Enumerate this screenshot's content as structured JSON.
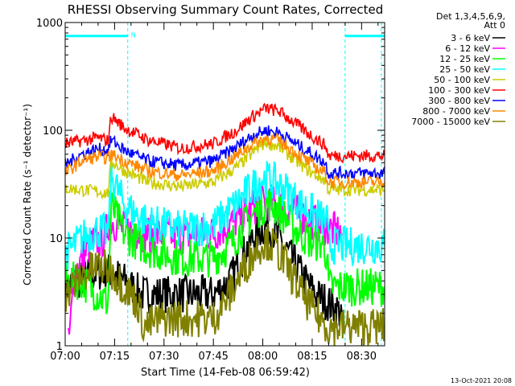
{
  "chart_data": {
    "type": "line",
    "title": "RHESSI Observing Summary Count Rates, Corrected",
    "xlabel": "Start Time (14-Feb-08 06:59:42)",
    "ylabel": "Corrected Count Rate (s⁻¹ detector⁻¹)",
    "yscale": "log",
    "ylim": [
      1,
      1000
    ],
    "xlim_minutes": [
      0,
      97
    ],
    "x_ticks": [
      {
        "t": 0,
        "label": "07:00"
      },
      {
        "t": 15,
        "label": "07:15"
      },
      {
        "t": 30,
        "label": "07:30"
      },
      {
        "t": 45,
        "label": "07:45"
      },
      {
        "t": 60,
        "label": "08:00"
      },
      {
        "t": 75,
        "label": "08:15"
      },
      {
        "t": 90,
        "label": "08:30"
      }
    ],
    "y_ticks": [
      {
        "v": 1,
        "label": "1"
      },
      {
        "v": 10,
        "label": "10"
      },
      {
        "v": 100,
        "label": "100"
      },
      {
        "v": 1000,
        "label": "1000"
      }
    ],
    "legend_header": [
      "Det 1,3,4,5,6,9,",
      "Att 0"
    ],
    "legend_position": "top-right",
    "footer_date": "13-Oct-2021 20:08",
    "flag_label": "N",
    "flag_bars": [
      [
        0,
        19
      ],
      [
        85,
        97
      ]
    ],
    "flag_level": 750,
    "night_markers_minutes": [
      0,
      19,
      85,
      96
    ],
    "series": [
      {
        "name": "3 - 6 keV",
        "color": "#000000",
        "points": [
          [
            0,
            3.5
          ],
          [
            8,
            4.6
          ],
          [
            13,
            5
          ],
          [
            18,
            4
          ],
          [
            23,
            3
          ],
          [
            30,
            3
          ],
          [
            40,
            3
          ],
          [
            45,
            3
          ],
          [
            50,
            4
          ],
          [
            54,
            7
          ],
          [
            58,
            11
          ],
          [
            61,
            13
          ],
          [
            64,
            11
          ],
          [
            68,
            7
          ],
          [
            73,
            4
          ],
          [
            76,
            3
          ],
          [
            80,
            2.5
          ],
          [
            84,
            2
          ]
        ]
      },
      {
        "name": "6 - 12 keV",
        "color": "#ff00ff",
        "points": [
          [
            1,
            1
          ],
          [
            3,
            5
          ],
          [
            8,
            9
          ],
          [
            12,
            10
          ],
          [
            13.5,
            15
          ],
          [
            18,
            12
          ],
          [
            25,
            11
          ],
          [
            35,
            10.5
          ],
          [
            45,
            11
          ],
          [
            51,
            14
          ],
          [
            56,
            18
          ],
          [
            60,
            22
          ],
          [
            63,
            21
          ],
          [
            67,
            19
          ],
          [
            72,
            16
          ],
          [
            78,
            13
          ],
          [
            84,
            11
          ]
        ]
      },
      {
        "name": "12 - 25 keV",
        "color": "#00ff00",
        "points": [
          [
            0,
            4
          ],
          [
            5,
            4
          ],
          [
            10,
            3
          ],
          [
            13,
            2.5
          ],
          [
            14,
            20
          ],
          [
            18,
            11
          ],
          [
            25,
            8
          ],
          [
            35,
            6.5
          ],
          [
            45,
            6.5
          ],
          [
            50,
            8.5
          ],
          [
            55,
            14
          ],
          [
            59,
            19
          ],
          [
            62,
            21
          ],
          [
            65,
            18
          ],
          [
            70,
            12
          ],
          [
            75,
            9
          ],
          [
            78,
            9
          ],
          [
            79.5,
            7
          ],
          [
            80,
            3.5
          ],
          [
            97,
            3.5
          ]
        ]
      },
      {
        "name": "25 - 50 keV",
        "color": "#00ffff",
        "points": [
          [
            0,
            7
          ],
          [
            5,
            10
          ],
          [
            10,
            12
          ],
          [
            13,
            11
          ],
          [
            14,
            38
          ],
          [
            18,
            20
          ],
          [
            25,
            14
          ],
          [
            35,
            12
          ],
          [
            45,
            13
          ],
          [
            50,
            18
          ],
          [
            56,
            28
          ],
          [
            60,
            36
          ],
          [
            63,
            34
          ],
          [
            67,
            28
          ],
          [
            72,
            20
          ],
          [
            78,
            15
          ],
          [
            79.5,
            14
          ],
          [
            80,
            8.5
          ],
          [
            97,
            8.5
          ]
        ]
      },
      {
        "name": "50 - 100 keV",
        "color": "#cccc00",
        "points": [
          [
            0,
            29
          ],
          [
            10,
            27
          ],
          [
            13,
            26
          ],
          [
            14,
            52
          ],
          [
            18,
            42
          ],
          [
            25,
            33
          ],
          [
            35,
            30
          ],
          [
            45,
            33
          ],
          [
            52,
            45
          ],
          [
            57,
            62
          ],
          [
            61,
            78
          ],
          [
            65,
            70
          ],
          [
            70,
            52
          ],
          [
            75,
            40
          ],
          [
            79,
            34
          ],
          [
            80,
            28
          ],
          [
            97,
            28
          ]
        ]
      },
      {
        "name": "100 - 300 keV",
        "color": "#ff0000",
        "points": [
          [
            0,
            75
          ],
          [
            5,
            80
          ],
          [
            10,
            85
          ],
          [
            13,
            80
          ],
          [
            14,
            135
          ],
          [
            18,
            105
          ],
          [
            25,
            82
          ],
          [
            35,
            68
          ],
          [
            45,
            75
          ],
          [
            52,
            100
          ],
          [
            57,
            135
          ],
          [
            61,
            160
          ],
          [
            65,
            150
          ],
          [
            70,
            115
          ],
          [
            75,
            88
          ],
          [
            79,
            72
          ],
          [
            80,
            58
          ],
          [
            97,
            58
          ]
        ]
      },
      {
        "name": "300 - 800 keV",
        "color": "#0000ff",
        "points": [
          [
            0,
            48
          ],
          [
            5,
            60
          ],
          [
            10,
            67
          ],
          [
            13,
            65
          ],
          [
            14,
            82
          ],
          [
            18,
            65
          ],
          [
            25,
            52
          ],
          [
            35,
            47
          ],
          [
            45,
            52
          ],
          [
            52,
            70
          ],
          [
            57,
            90
          ],
          [
            61,
            100
          ],
          [
            65,
            95
          ],
          [
            70,
            75
          ],
          [
            75,
            60
          ],
          [
            79,
            50
          ],
          [
            80,
            40
          ],
          [
            97,
            40
          ]
        ]
      },
      {
        "name": "800 - 7000 keV",
        "color": "#ff8800",
        "points": [
          [
            0,
            40
          ],
          [
            5,
            52
          ],
          [
            10,
            57
          ],
          [
            13,
            55
          ],
          [
            14,
            60
          ],
          [
            18,
            52
          ],
          [
            25,
            42
          ],
          [
            35,
            38
          ],
          [
            45,
            42
          ],
          [
            52,
            58
          ],
          [
            57,
            75
          ],
          [
            61,
            85
          ],
          [
            65,
            80
          ],
          [
            70,
            62
          ],
          [
            75,
            48
          ],
          [
            79,
            40
          ],
          [
            80,
            33
          ],
          [
            97,
            33
          ]
        ]
      },
      {
        "name": "7000 - 15000 keV",
        "color": "#808000",
        "points": [
          [
            0,
            3
          ],
          [
            5,
            4.5
          ],
          [
            10,
            5.5
          ],
          [
            14,
            5
          ],
          [
            18,
            3.5
          ],
          [
            22,
            2.5
          ],
          [
            24,
            1.5
          ],
          [
            30,
            1.8
          ],
          [
            40,
            1.8
          ],
          [
            45,
            1.8
          ],
          [
            50,
            3
          ],
          [
            54,
            5
          ],
          [
            58,
            8
          ],
          [
            61,
            9.5
          ],
          [
            64,
            8
          ],
          [
            68,
            5
          ],
          [
            72,
            3
          ],
          [
            76,
            2
          ],
          [
            80,
            1.5
          ],
          [
            97,
            1.5
          ]
        ]
      }
    ]
  }
}
